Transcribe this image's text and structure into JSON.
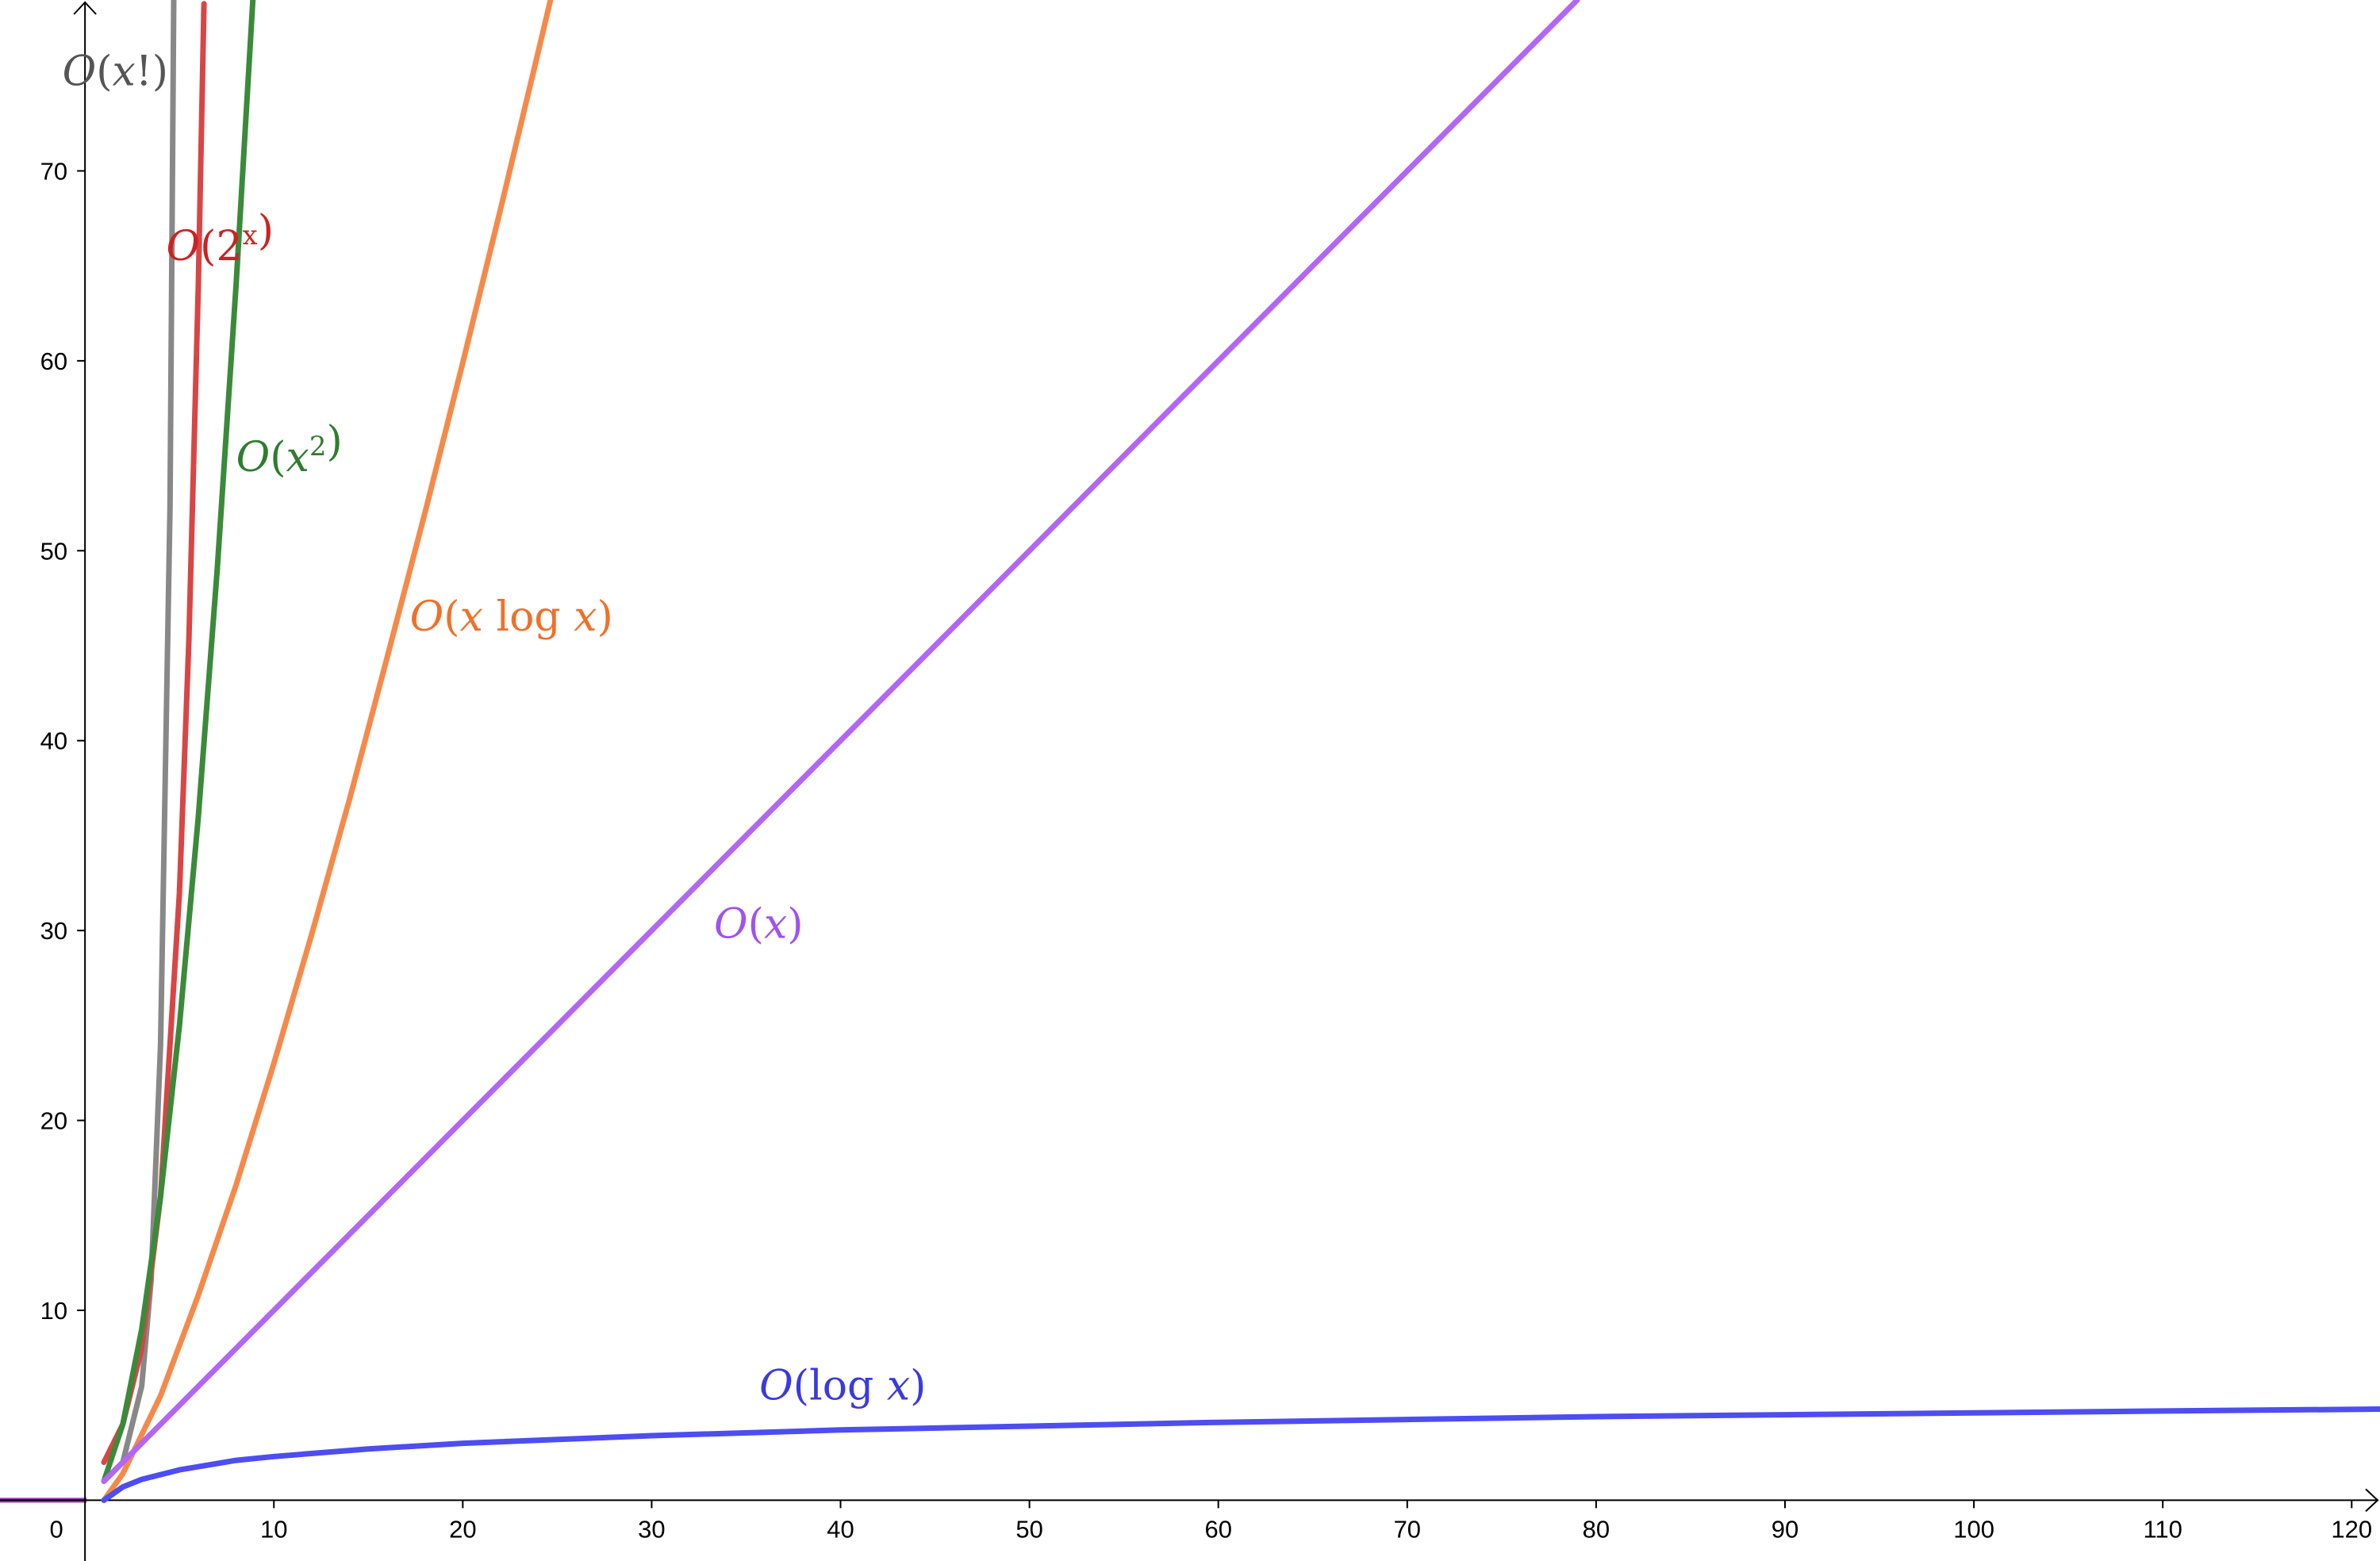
{
  "chart_data": {
    "type": "line",
    "title": "",
    "xlabel": "",
    "ylabel": "",
    "xlim": [
      -4.5,
      121.5
    ],
    "ylim": [
      -3.2,
      79
    ],
    "x_ticks": [
      0,
      10,
      20,
      30,
      40,
      50,
      60,
      70,
      80,
      90,
      100,
      110,
      120
    ],
    "y_ticks": [
      10,
      20,
      30,
      40,
      50,
      60,
      70
    ],
    "x_tick_labels": [
      "0",
      "10",
      "20",
      "30",
      "40",
      "50",
      "60",
      "70",
      "80",
      "90",
      "100",
      "110",
      "120"
    ],
    "y_tick_labels": [
      "10",
      "20",
      "30",
      "40",
      "50",
      "60",
      "70"
    ],
    "grid": false,
    "legend": "labels placed next to curves",
    "series": [
      {
        "name": "O(x!)",
        "label_parts": [
          [
            "O",
            "i"
          ],
          [
            "(",
            "u"
          ],
          [
            "x",
            "i"
          ],
          [
            "!)",
            "u"
          ]
        ],
        "color": "#888888",
        "x": [
          1,
          2,
          3,
          3.5,
          4,
          4.5,
          5
        ],
        "y": [
          1,
          2,
          6,
          11.6,
          24,
          52.3,
          120
        ]
      },
      {
        "name": "O(2^x)",
        "label_parts": [
          [
            "O",
            "i"
          ],
          [
            "(2",
            "u"
          ],
          [
            "x",
            "sup"
          ],
          [
            ")",
            "u"
          ]
        ],
        "color": "#d94545",
        "x": [
          1,
          2,
          3,
          4,
          5,
          5.5,
          6,
          6.3
        ],
        "y": [
          2,
          4,
          8,
          16,
          32,
          45.3,
          64,
          78.8
        ]
      },
      {
        "name": "O(x^2)",
        "label_parts": [
          [
            "O",
            "i"
          ],
          [
            "(",
            "u"
          ],
          [
            "x",
            "i"
          ],
          [
            "2",
            "sup"
          ],
          [
            ")",
            "u"
          ]
        ],
        "color": "#3a8a3a",
        "x": [
          1,
          2,
          3,
          4,
          5,
          6,
          7,
          8,
          8.9
        ],
        "y": [
          1,
          4,
          9,
          16,
          25,
          36,
          49,
          64,
          79.2
        ]
      },
      {
        "name": "O(x log x)",
        "label_parts": [
          [
            "O",
            "i"
          ],
          [
            "(",
            "u"
          ],
          [
            "x",
            "i"
          ],
          [
            " log ",
            "u"
          ],
          [
            "x",
            "i"
          ],
          [
            ")",
            "u"
          ]
        ],
        "color": "#f5894a",
        "x": [
          1,
          2,
          4,
          6,
          8,
          10,
          12,
          14,
          16,
          18,
          20,
          22,
          24,
          25
        ],
        "y": [
          0,
          1.4,
          5.5,
          10.8,
          16.6,
          23,
          29.8,
          36.9,
          44.4,
          52,
          59.9,
          68,
          76.3,
          80.5
        ]
      },
      {
        "name": "O(x)",
        "label_parts": [
          [
            "O",
            "i"
          ],
          [
            "(",
            "u"
          ],
          [
            "x",
            "i"
          ],
          [
            ")",
            "u"
          ]
        ],
        "color": "#b366f5",
        "x": [
          1,
          79
        ],
        "y": [
          1,
          79
        ]
      },
      {
        "name": "O(log x)",
        "label_parts": [
          [
            "O",
            "i"
          ],
          [
            "(log ",
            "u"
          ],
          [
            "x",
            "i"
          ],
          [
            ")",
            "u"
          ]
        ],
        "color": "#4d4df2",
        "x": [
          1,
          2,
          3,
          5,
          8,
          10,
          15,
          20,
          30,
          40,
          50,
          60,
          70,
          80,
          90,
          100,
          110,
          121.5
        ],
        "y": [
          0,
          0.7,
          1.1,
          1.6,
          2.1,
          2.3,
          2.7,
          3.0,
          3.4,
          3.7,
          3.9,
          4.1,
          4.25,
          4.4,
          4.5,
          4.6,
          4.7,
          4.8
        ]
      }
    ],
    "annotations": [
      {
        "series": "O(x!)",
        "text": "O(x!)",
        "x": -1.2,
        "y": 74.5,
        "color": "#555555"
      },
      {
        "series": "O(2^x)",
        "text": "O(2^x)",
        "x": 4.3,
        "y": 65.3,
        "color": "#cc2222"
      },
      {
        "series": "O(x^2)",
        "text": "O(x^2)",
        "x": 8,
        "y": 54.2,
        "color": "#2e7d2e"
      },
      {
        "series": "O(x log x)",
        "text": "O(x log x)",
        "x": 17.2,
        "y": 45.8,
        "color": "#f0702a"
      },
      {
        "series": "O(x)",
        "text": "O(x)",
        "x": 33.3,
        "y": 29.6,
        "color": "#a052f0"
      },
      {
        "series": "O(log x)",
        "text": "O(log x)",
        "x": 35.7,
        "y": 5.3,
        "color": "#3a3ae0"
      }
    ],
    "baseline_color": "#9933bb"
  }
}
